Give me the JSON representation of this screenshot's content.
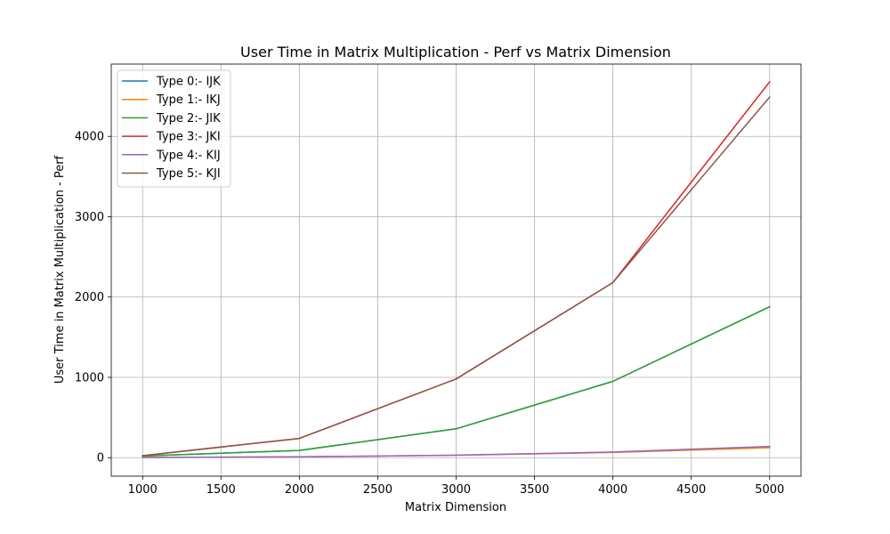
{
  "chart_data": {
    "type": "line",
    "title": "User Time in Matrix Multiplication - Perf vs Matrix Dimension",
    "xlabel": "Matrix Dimension",
    "ylabel": "User Time in Matrix Multiplication - Perf",
    "x": [
      1000,
      2000,
      3000,
      4000,
      5000
    ],
    "xlim": [
      800,
      5200
    ],
    "ylim": [
      -230,
      4900
    ],
    "xticks": [
      1000,
      1500,
      2000,
      2500,
      3000,
      3500,
      4000,
      4500,
      5000
    ],
    "yticks": [
      0,
      1000,
      2000,
      3000,
      4000
    ],
    "grid": true,
    "legend_position": "top-left",
    "series": [
      {
        "name": "Type 0:- IJK",
        "color": "#1f77b4",
        "values": [
          20,
          90,
          360,
          950,
          1880
        ]
      },
      {
        "name": "Type 1:- IKJ",
        "color": "#ff7f0e",
        "values": [
          3,
          10,
          30,
          65,
          125
        ]
      },
      {
        "name": "Type 2:- JIK",
        "color": "#2ca02c",
        "values": [
          20,
          90,
          360,
          950,
          1880
        ]
      },
      {
        "name": "Type 3:- JKI",
        "color": "#d62728",
        "values": [
          25,
          240,
          980,
          2180,
          4680
        ]
      },
      {
        "name": "Type 4:- KIJ",
        "color": "#9467bd",
        "values": [
          3,
          10,
          32,
          70,
          140
        ]
      },
      {
        "name": "Type 5:- KJI",
        "color": "#8c564b",
        "values": [
          25,
          240,
          980,
          2180,
          4490
        ]
      }
    ]
  }
}
